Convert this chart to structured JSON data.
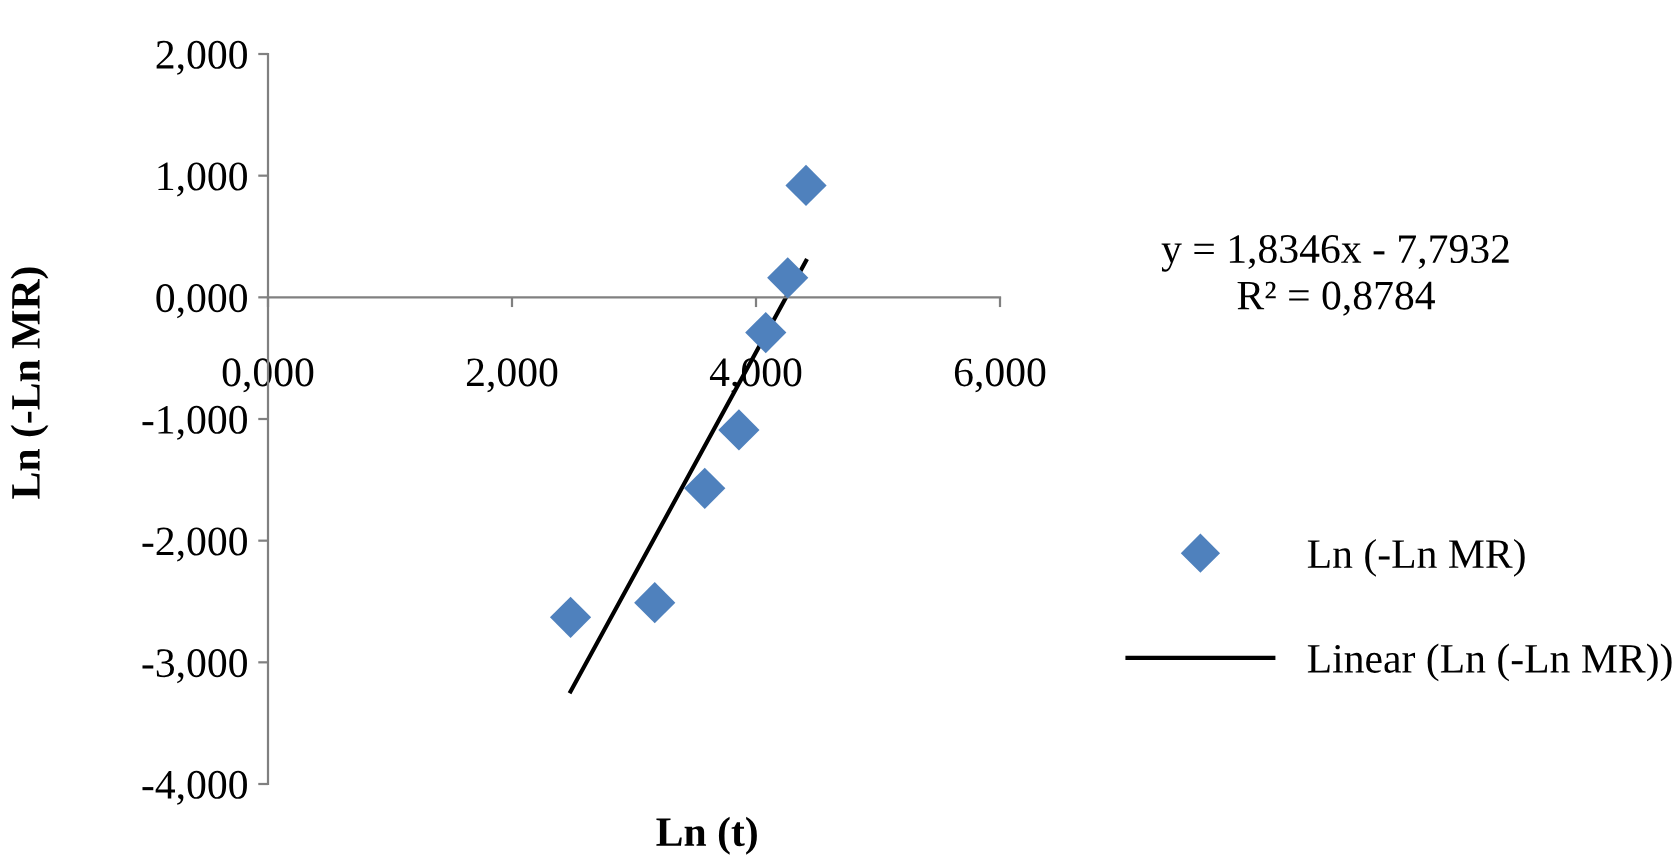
{
  "chart_data": {
    "type": "scatter",
    "xlabel": "Ln (t)",
    "ylabel": "Ln (-Ln MR)",
    "series": [
      {
        "name": "Ln (-Ln MR)",
        "color": "#4f81bd",
        "marker": "diamond",
        "x": [
          2.48,
          3.17,
          3.58,
          3.86,
          4.08,
          4.26,
          4.41
        ],
        "values": [
          -2.63,
          -2.51,
          -1.57,
          -1.09,
          -0.29,
          0.16,
          0.92
        ]
      },
      {
        "name": "Linear (Ln (-Ln MR))",
        "type": "line",
        "color": "#000000",
        "line_style": "solid",
        "x": [
          2.48,
          4.41
        ],
        "values": [
          -3.24,
          0.3
        ]
      }
    ],
    "annotations": [
      "y = 1,8346x - 7,7932\nR² = 0,8784"
    ],
    "xlim": [
      0,
      6
    ],
    "ylim": [
      -4,
      2
    ],
    "xticks": [
      {
        "value": 0,
        "label": "0,000"
      },
      {
        "value": 2,
        "label": "2,000"
      },
      {
        "value": 4,
        "label": "4,000"
      },
      {
        "value": 6,
        "label": "6,000"
      }
    ],
    "yticks": [
      {
        "value": -4,
        "label": "-4,000"
      },
      {
        "value": -3,
        "label": "-3,000"
      },
      {
        "value": -2,
        "label": "-2,000"
      },
      {
        "value": -1,
        "label": "-1,000"
      },
      {
        "value": 0,
        "label": "0,000"
      },
      {
        "value": 1,
        "label": "1,000"
      },
      {
        "value": 2,
        "label": "2,000"
      }
    ],
    "grid": false,
    "legend": "right"
  }
}
